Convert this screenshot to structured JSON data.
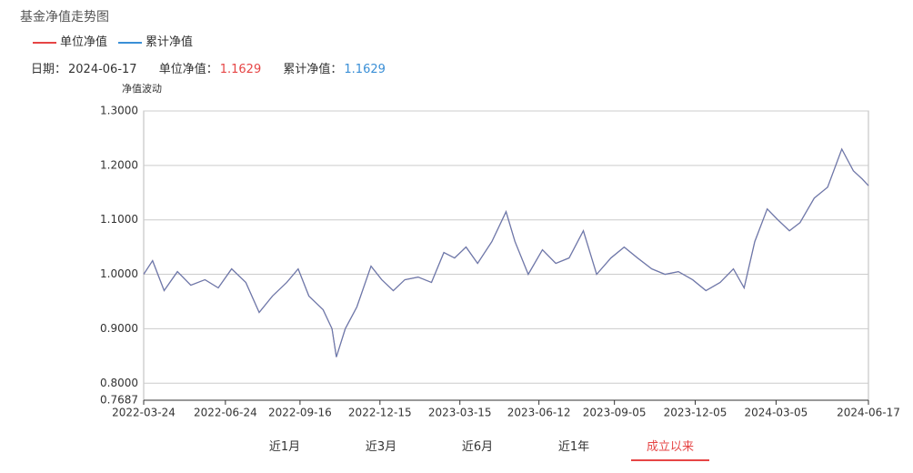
{
  "chart_data": {
    "type": "line",
    "title": "基金净值走势图",
    "y_label": "净值波动",
    "x": [
      "2022-03-24",
      "2022-04-03",
      "2022-04-16",
      "2022-05-01",
      "2022-05-16",
      "2022-06-01",
      "2022-06-16",
      "2022-07-01",
      "2022-07-17",
      "2022-08-01",
      "2022-08-16",
      "2022-09-01",
      "2022-09-14",
      "2022-09-26",
      "2022-10-12",
      "2022-10-22",
      "2022-10-27",
      "2022-11-06",
      "2022-11-19",
      "2022-12-05",
      "2022-12-17",
      "2022-12-30",
      "2023-01-12",
      "2023-01-27",
      "2023-02-11",
      "2023-02-25",
      "2023-03-09",
      "2023-03-22",
      "2023-04-04",
      "2023-04-20",
      "2023-05-06",
      "2023-05-16",
      "2023-05-31",
      "2023-06-16",
      "2023-07-01",
      "2023-07-16",
      "2023-08-01",
      "2023-08-16",
      "2023-09-01",
      "2023-09-16",
      "2023-10-01",
      "2023-10-17",
      "2023-11-01",
      "2023-11-16",
      "2023-12-02",
      "2023-12-17",
      "2024-01-02",
      "2024-01-17",
      "2024-01-29",
      "2024-02-10",
      "2024-02-24",
      "2024-03-07",
      "2024-03-20",
      "2024-04-01",
      "2024-04-17",
      "2024-05-02",
      "2024-05-18",
      "2024-05-31",
      "2024-06-10",
      "2024-06-17"
    ],
    "series": [
      {
        "name": "单位净值",
        "color": "#e64545",
        "values": [
          1.0,
          1.025,
          0.97,
          1.005,
          0.98,
          0.99,
          0.975,
          1.01,
          0.985,
          0.93,
          0.96,
          0.985,
          1.01,
          0.96,
          0.935,
          0.9,
          0.848,
          0.9,
          0.94,
          1.015,
          0.99,
          0.97,
          0.99,
          0.995,
          0.985,
          1.04,
          1.03,
          1.05,
          1.02,
          1.06,
          1.115,
          1.06,
          1.0,
          1.045,
          1.02,
          1.03,
          1.08,
          1.0,
          1.03,
          1.05,
          1.03,
          1.01,
          1.0,
          1.005,
          0.99,
          0.97,
          0.985,
          1.01,
          0.975,
          1.06,
          1.12,
          1.1,
          1.08,
          1.095,
          1.14,
          1.16,
          1.23,
          1.19,
          1.175,
          1.1629
        ]
      },
      {
        "name": "累计净值",
        "color": "#3a8fd6",
        "values": [
          1.0,
          1.025,
          0.97,
          1.005,
          0.98,
          0.99,
          0.975,
          1.01,
          0.985,
          0.93,
          0.96,
          0.985,
          1.01,
          0.96,
          0.935,
          0.9,
          0.848,
          0.9,
          0.94,
          1.015,
          0.99,
          0.97,
          0.99,
          0.995,
          0.985,
          1.04,
          1.03,
          1.05,
          1.02,
          1.06,
          1.115,
          1.06,
          1.0,
          1.045,
          1.02,
          1.03,
          1.08,
          1.0,
          1.03,
          1.05,
          1.03,
          1.01,
          1.0,
          1.005,
          0.99,
          0.97,
          0.985,
          1.01,
          0.975,
          1.06,
          1.12,
          1.1,
          1.08,
          1.095,
          1.14,
          1.16,
          1.23,
          1.19,
          1.175,
          1.1629
        ]
      }
    ],
    "xlim": [
      "2022-03-24",
      "2024-06-17"
    ],
    "xticks": [
      "2022-03-24",
      "2022-06-24",
      "2022-09-16",
      "2022-12-15",
      "2023-03-15",
      "2023-06-12",
      "2023-09-05",
      "2023-12-05",
      "2024-03-05",
      "2024-06-17"
    ],
    "ylim": [
      0.7687,
      1.3
    ],
    "yticks": [
      {
        "value": 0.7687,
        "label": "0.7687"
      },
      {
        "value": 0.8,
        "label": "0.8000"
      },
      {
        "value": 0.9,
        "label": "0.9000"
      },
      {
        "value": 1.0,
        "label": "1.0000"
      },
      {
        "value": 1.1,
        "label": "1.1000"
      },
      {
        "value": 1.2,
        "label": "1.2000"
      },
      {
        "value": 1.3,
        "label": "1.3000"
      }
    ],
    "grid": true
  },
  "info": {
    "date_label": "日期：",
    "date": "2024-06-17",
    "unit_label": "单位净值：",
    "unit_value": 1.1629,
    "cum_label": "累计净值：",
    "cum_value": 1.1629
  },
  "range_buttons": [
    "近1月",
    "近3月",
    "近6月",
    "近1年",
    "成立以来"
  ]
}
